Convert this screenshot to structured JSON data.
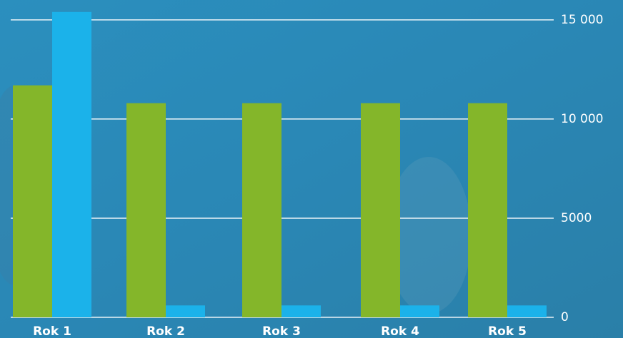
{
  "chart_data": {
    "type": "bar",
    "categories": [
      "Rok 1",
      "Rok 2",
      "Rok 3",
      "Rok 4",
      "Rok 5"
    ],
    "series": [
      {
        "color": "#84b62a",
        "values": [
          11700,
          10800,
          10800,
          10800,
          10800
        ]
      },
      {
        "color": "#1bb2ea",
        "values": [
          15400,
          600,
          600,
          600,
          600
        ]
      }
    ],
    "ylim": [
      0,
      15500
    ],
    "yticks": [
      0,
      5000,
      {
        "value": 10000,
        "label": "10 000"
      },
      {
        "value": 15000,
        "label": "15 000"
      }
    ],
    "grid": true
  }
}
